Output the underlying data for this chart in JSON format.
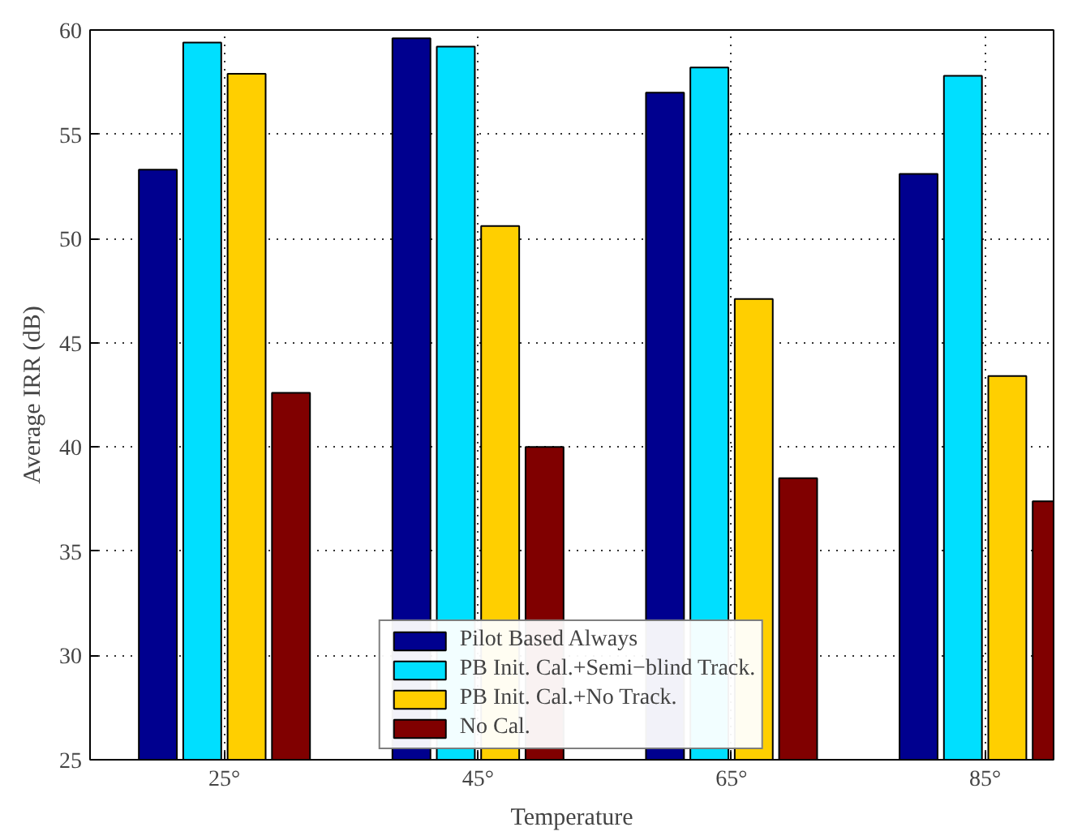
{
  "chart_data": {
    "type": "bar",
    "xlabel": "Temperature",
    "ylabel": "Average IRR (dB)",
    "categories": [
      "25°",
      "45°",
      "65°",
      "85°"
    ],
    "series": [
      {
        "name": "Pilot Based Always",
        "color": "#00008f",
        "values": [
          53.3,
          59.6,
          57.0,
          53.1
        ]
      },
      {
        "name": "PB Init. Cal.+Semi−blind Track.",
        "color": "#00dfff",
        "values": [
          59.4,
          59.2,
          58.2,
          57.8
        ]
      },
      {
        "name": "PB Init. Cal.+No Track.",
        "color": "#ffcf00",
        "values": [
          57.9,
          50.6,
          47.1,
          43.4
        ]
      },
      {
        "name": "No Cal.",
        "color": "#800000",
        "values": [
          42.6,
          40.0,
          38.5,
          37.4
        ]
      }
    ],
    "ylim": [
      25,
      60
    ],
    "yticks": [
      25,
      30,
      35,
      40,
      45,
      50,
      55,
      60
    ],
    "grid": true,
    "legend": "bottom"
  }
}
